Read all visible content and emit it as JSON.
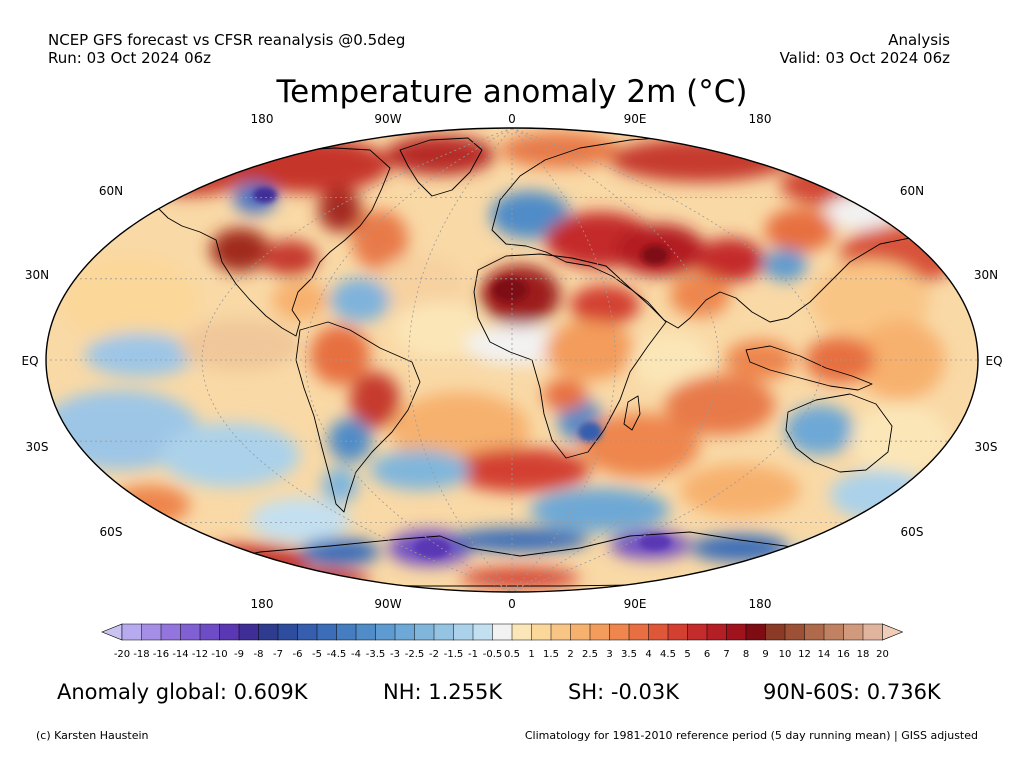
{
  "header": {
    "left_line1": "NCEP GFS forecast vs CFSR reanalysis @0.5deg",
    "left_line2": "Run: 03 Oct 2024 06z",
    "right_line1": "Analysis",
    "right_line2": "Valid: 03 Oct 2024 06z"
  },
  "title": "Temperature anomaly 2m (°C)",
  "map": {
    "projection": "Robinson",
    "top_lon_labels": [
      "180",
      "90W",
      "0",
      "90E",
      "180"
    ],
    "bottom_lon_labels": [
      "180",
      "90W",
      "0",
      "90E",
      "180"
    ],
    "lat_labels": [
      "60N",
      "30N",
      "EQ",
      "30S",
      "60S"
    ]
  },
  "colorbar": {
    "labels": [
      "-20",
      "-18",
      "-16",
      "-14",
      "-12",
      "-10",
      "-9",
      "-8",
      "-7",
      "-6",
      "-5",
      "-4.5",
      "-4",
      "-3.5",
      "-3",
      "-2.5",
      "-2",
      "-1.5",
      "-1",
      "-0.5",
      "0.5",
      "1",
      "1.5",
      "2",
      "2.5",
      "3",
      "3.5",
      "4",
      "4.5",
      "5",
      "6",
      "7",
      "8",
      "9",
      "10",
      "12",
      "14",
      "16",
      "18",
      "20"
    ],
    "colors": [
      "#c9c3f2",
      "#b7aaef",
      "#a58ee6",
      "#9375dd",
      "#8060d2",
      "#6d4cc5",
      "#5a38b3",
      "#3f2e96",
      "#2f3b8f",
      "#2f4d9e",
      "#355fae",
      "#3b6db8",
      "#447dc0",
      "#4f8cc8",
      "#5d9bd0",
      "#6da8d6",
      "#80b6dc",
      "#95c4e3",
      "#abd2ea",
      "#c3e0f1",
      "#f2f2f2",
      "#fbe6b8",
      "#fbd79a",
      "#f9c585",
      "#f7b16e",
      "#f39c5c",
      "#ee864d",
      "#e76f41",
      "#de5738",
      "#d33f31",
      "#c42b2b",
      "#b31f24",
      "#a0121c",
      "#7e0d13",
      "#8b3a26",
      "#9c5136",
      "#ae6a4b",
      "#c08262",
      "#d19a7c",
      "#e1b59d",
      "#efcdb8"
    ]
  },
  "stats": {
    "global": "Anomaly global: 0.609K",
    "nh": "NH: 1.255K",
    "sh": "SH: -0.03K",
    "polar": "90N-60S: 0.736K"
  },
  "footer": {
    "left": "(c) Karsten Haustein",
    "right": "Climatology for 1981-2010 reference period (5 day running mean) | GISS adjusted"
  }
}
